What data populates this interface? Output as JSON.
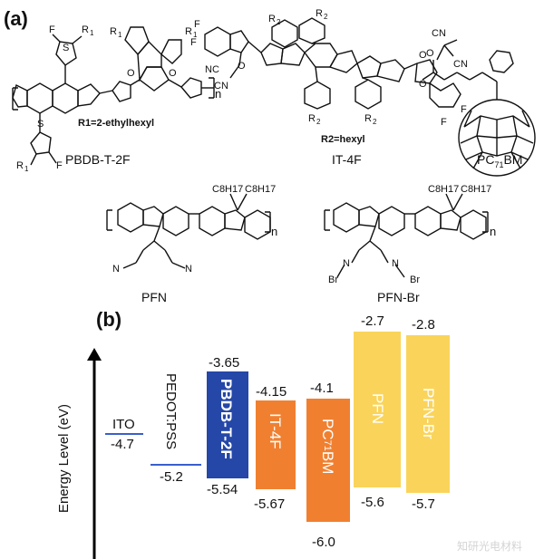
{
  "panel_a": {
    "label": "(a)",
    "molecules": [
      {
        "name": "PBDB-T-2F",
        "note": "R1=2-ethylhexyl"
      },
      {
        "name": "IT-4F",
        "note": "R2=hexyl"
      },
      {
        "name": "PC71BM",
        "name_main": "PC",
        "name_sub": "71",
        "name_tail": "BM"
      },
      {
        "name": "PFN"
      },
      {
        "name": "PFN-Br"
      }
    ],
    "atoms": {
      "F": "F",
      "S": "S",
      "R1": "R",
      "R1sub": "1",
      "R2": "R",
      "R2sub": "2",
      "O": "O",
      "N": "N",
      "NC": "NC",
      "CN": "CN",
      "Br": "Br",
      "C8H17": "C8H17",
      "n": "n"
    }
  },
  "panel_b": {
    "label": "(b)",
    "axis_label": "Energy Level (eV)",
    "levels": [
      {
        "name": "ITO",
        "value": "-4.7",
        "color": "#3a5fcd"
      },
      {
        "name": "PEDOT:PSS",
        "value": "-5.2",
        "color": "#3a5fcd"
      },
      {
        "name": "PBDB-T-2F",
        "lumo": "-3.65",
        "homo": "-5.54",
        "color": "#2447a8"
      },
      {
        "name": "IT-4F",
        "lumo": "-4.15",
        "homo": "-5.67",
        "color": "#f08030"
      },
      {
        "name_main": "PC",
        "name_sub": "71",
        "name_tail": "BM",
        "lumo": "-4.1",
        "homo": "-6.0",
        "color": "#f08030"
      },
      {
        "name": "PFN",
        "lumo": "-2.7",
        "homo": "-5.6",
        "color": "#fad45a"
      },
      {
        "name": "PFN-Br",
        "lumo": "-2.8",
        "homo": "-5.7",
        "color": "#fad45a"
      }
    ]
  },
  "watermark": "知研光电材料"
}
